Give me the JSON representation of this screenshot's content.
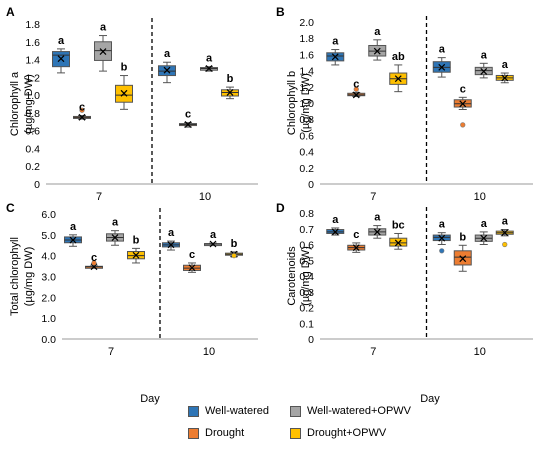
{
  "x_axis_title": "Day",
  "legend": [
    {
      "label": "Well-watered",
      "color": "#2e75b6"
    },
    {
      "label": "Well-watered+OPWV",
      "color": "#a5a5a5"
    },
    {
      "label": "Drought",
      "color": "#ed7d31"
    },
    {
      "label": "Drought+OPWV",
      "color": "#ffc000"
    }
  ],
  "chart_data": [
    {
      "type": "box",
      "panel_label": "A",
      "ylabel": [
        "Chlorophyll a",
        "(µg/mg DW)"
      ],
      "ylim": [
        0,
        1.8
      ],
      "yticks": [
        "0",
        "0.2",
        "0.4",
        "0.6",
        "0.8",
        "1.0",
        "1.2",
        "1.4",
        "1.6",
        "1.8"
      ],
      "categories": [
        "7",
        "10"
      ],
      "series": [
        {
          "name": "Well-watered",
          "boxes": [
            {
              "min": 1.25,
              "q1": 1.32,
              "median": 1.45,
              "q3": 1.49,
              "max": 1.52,
              "mean": 1.41,
              "letter": "a"
            },
            {
              "min": 1.14,
              "q1": 1.22,
              "median": 1.27,
              "q3": 1.33,
              "max": 1.37,
              "mean": 1.28,
              "letter": "a"
            }
          ]
        },
        {
          "name": "Drought",
          "boxes": [
            {
              "min": 0.73,
              "q1": 0.74,
              "median": 0.75,
              "q3": 0.76,
              "max": 0.77,
              "mean": 0.75,
              "outliers": [
                0.83
              ],
              "letter": "c"
            },
            {
              "min": 0.64,
              "q1": 0.66,
              "median": 0.67,
              "q3": 0.68,
              "max": 0.69,
              "mean": 0.67,
              "letter": "c"
            }
          ]
        },
        {
          "name": "Well-watered+OPWV",
          "boxes": [
            {
              "min": 1.27,
              "q1": 1.39,
              "median": 1.5,
              "q3": 1.6,
              "max": 1.67,
              "mean": 1.49,
              "letter": "a"
            },
            {
              "min": 1.27,
              "q1": 1.28,
              "median": 1.3,
              "q3": 1.31,
              "max": 1.32,
              "mean": 1.3,
              "letter": "a"
            }
          ]
        },
        {
          "name": "Drought+OPWV",
          "boxes": [
            {
              "min": 0.84,
              "q1": 0.92,
              "median": 1.0,
              "q3": 1.11,
              "max": 1.22,
              "mean": 1.02,
              "letter": "b"
            },
            {
              "min": 0.96,
              "q1": 0.99,
              "median": 1.03,
              "q3": 1.06,
              "max": 1.09,
              "mean": 1.03,
              "letter": "b"
            }
          ]
        }
      ]
    },
    {
      "type": "box",
      "panel_label": "B",
      "ylabel": [
        "Chlorophyll b",
        "(µg/mg DW)"
      ],
      "ylim": [
        0,
        2
      ],
      "yticks": [
        "0",
        "0.2",
        "0.4",
        "0.6",
        "0.8",
        "1.0",
        "1.2",
        "1.4",
        "1.6",
        "1.8",
        "2.0"
      ],
      "categories": [
        "7",
        "10"
      ],
      "series": [
        {
          "name": "Well-watered",
          "boxes": [
            {
              "min": 1.47,
              "q1": 1.52,
              "median": 1.58,
              "q3": 1.62,
              "max": 1.66,
              "mean": 1.57,
              "letter": "a"
            },
            {
              "min": 1.32,
              "q1": 1.38,
              "median": 1.44,
              "q3": 1.51,
              "max": 1.56,
              "mean": 1.44,
              "letter": "a"
            }
          ]
        },
        {
          "name": "Drought",
          "boxes": [
            {
              "min": 1.08,
              "q1": 1.09,
              "median": 1.1,
              "q3": 1.12,
              "max": 1.13,
              "mean": 1.1,
              "outliers": [
                1.17
              ],
              "letter": "c"
            },
            {
              "min": 0.92,
              "q1": 0.95,
              "median": 0.99,
              "q3": 1.04,
              "max": 1.07,
              "mean": 0.99,
              "outliers": [
                0.73
              ],
              "letter": "c"
            }
          ]
        },
        {
          "name": "Well-watered+OPWV",
          "boxes": [
            {
              "min": 1.53,
              "q1": 1.58,
              "median": 1.64,
              "q3": 1.71,
              "max": 1.78,
              "mean": 1.64,
              "letter": "a"
            },
            {
              "min": 1.31,
              "q1": 1.35,
              "median": 1.4,
              "q3": 1.44,
              "max": 1.49,
              "mean": 1.39,
              "letter": "a"
            }
          ]
        },
        {
          "name": "Drought+OPWV",
          "boxes": [
            {
              "min": 1.14,
              "q1": 1.23,
              "median": 1.3,
              "q3": 1.37,
              "max": 1.47,
              "mean": 1.3,
              "letter": "ab"
            },
            {
              "min": 1.25,
              "q1": 1.28,
              "median": 1.31,
              "q3": 1.34,
              "max": 1.37,
              "mean": 1.31,
              "letter": "a"
            }
          ]
        }
      ]
    },
    {
      "type": "box",
      "panel_label": "C",
      "ylabel": [
        "Total chlorophyll",
        "(µg/mg DW)"
      ],
      "ylim": [
        0,
        6
      ],
      "yticks": [
        "0.0",
        "1.0",
        "2.0",
        "3.0",
        "4.0",
        "5.0",
        "6.0"
      ],
      "categories": [
        "7",
        "10"
      ],
      "series": [
        {
          "name": "Well-watered",
          "boxes": [
            {
              "min": 4.45,
              "q1": 4.62,
              "median": 4.75,
              "q3": 4.9,
              "max": 5.0,
              "mean": 4.75,
              "letter": "a"
            },
            {
              "min": 4.27,
              "q1": 4.42,
              "median": 4.52,
              "q3": 4.62,
              "max": 4.7,
              "mean": 4.52,
              "letter": "a"
            }
          ]
        },
        {
          "name": "Drought",
          "boxes": [
            {
              "min": 3.42,
              "q1": 3.45,
              "median": 3.47,
              "q3": 3.49,
              "max": 3.51,
              "mean": 3.47,
              "outliers": [
                3.65
              ],
              "letter": "c"
            },
            {
              "min": 3.2,
              "q1": 3.29,
              "median": 3.4,
              "q3": 3.54,
              "max": 3.65,
              "mean": 3.42,
              "letter": "c"
            }
          ]
        },
        {
          "name": "Well-watered+OPWV",
          "boxes": [
            {
              "min": 4.5,
              "q1": 4.7,
              "median": 4.87,
              "q3": 5.05,
              "max": 5.2,
              "mean": 4.87,
              "letter": "a"
            },
            {
              "min": 4.52,
              "q1": 4.54,
              "median": 4.56,
              "q3": 4.58,
              "max": 4.6,
              "mean": 4.56,
              "letter": "a"
            }
          ]
        },
        {
          "name": "Drought+OPWV",
          "boxes": [
            {
              "min": 3.65,
              "q1": 3.85,
              "median": 4.0,
              "q3": 4.2,
              "max": 4.35,
              "mean": 4.02,
              "letter": "b"
            },
            {
              "min": 3.95,
              "q1": 4.02,
              "median": 4.07,
              "q3": 4.12,
              "max": 4.18,
              "mean": 4.07,
              "outliers": [
                4.0
              ],
              "letter": "b"
            }
          ]
        }
      ]
    },
    {
      "type": "box",
      "panel_label": "D",
      "ylabel": [
        "Carotenoids",
        "(µg/mg DW)"
      ],
      "ylim": [
        0,
        0.8
      ],
      "yticks": [
        "0",
        "0.1",
        "0.2",
        "0.3",
        "0.4",
        "0.5",
        "0.6",
        "0.7",
        "0.8"
      ],
      "categories": [
        "7",
        "10"
      ],
      "series": [
        {
          "name": "Well-watered",
          "boxes": [
            {
              "min": 0.66,
              "q1": 0.67,
              "median": 0.68,
              "q3": 0.695,
              "max": 0.705,
              "mean": 0.68,
              "letter": "a"
            },
            {
              "min": 0.6,
              "q1": 0.625,
              "median": 0.645,
              "q3": 0.66,
              "max": 0.675,
              "mean": 0.64,
              "outliers": [
                0.56
              ],
              "letter": "a"
            }
          ]
        },
        {
          "name": "Drought",
          "boxes": [
            {
              "min": 0.55,
              "q1": 0.565,
              "median": 0.58,
              "q3": 0.595,
              "max": 0.61,
              "mean": 0.58,
              "letter": "c"
            },
            {
              "min": 0.43,
              "q1": 0.47,
              "median": 0.52,
              "q3": 0.56,
              "max": 0.595,
              "mean": 0.51,
              "letter": "b"
            }
          ]
        },
        {
          "name": "Well-watered+OPWV",
          "boxes": [
            {
              "min": 0.64,
              "q1": 0.66,
              "median": 0.68,
              "q3": 0.7,
              "max": 0.72,
              "mean": 0.68,
              "letter": "a"
            },
            {
              "min": 0.6,
              "q1": 0.62,
              "median": 0.64,
              "q3": 0.66,
              "max": 0.68,
              "mean": 0.64,
              "letter": "a"
            }
          ]
        },
        {
          "name": "Drought+OPWV",
          "boxes": [
            {
              "min": 0.57,
              "q1": 0.59,
              "median": 0.61,
              "q3": 0.64,
              "max": 0.67,
              "mean": 0.61,
              "letter": "bc"
            },
            {
              "min": 0.655,
              "q1": 0.665,
              "median": 0.675,
              "q3": 0.685,
              "max": 0.695,
              "mean": 0.675,
              "outliers": [
                0.6
              ],
              "letter": "a"
            }
          ]
        }
      ]
    }
  ]
}
